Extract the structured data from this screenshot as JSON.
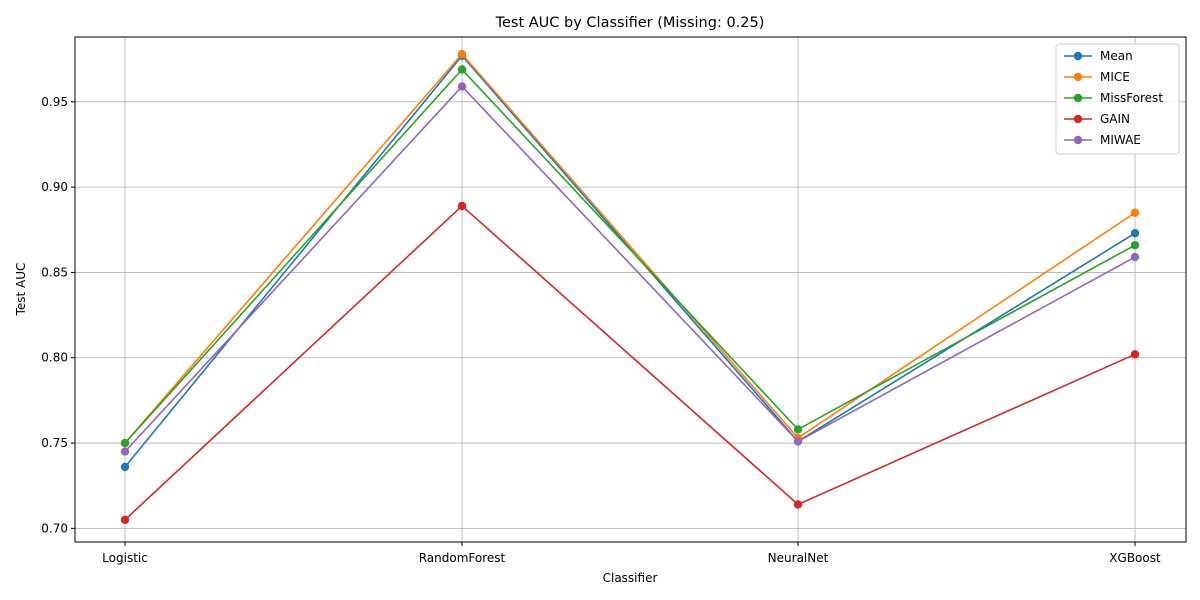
{
  "chart_data": {
    "type": "line",
    "title": "Test AUC by Classifier (Missing: 0.25)",
    "xlabel": "Classifier",
    "ylabel": "Test AUC",
    "categories": [
      "Logistic",
      "RandomForest",
      "NeuralNet",
      "XGBoost"
    ],
    "ylim": [
      0.692,
      0.988
    ],
    "yticks": [
      "0.70",
      "0.75",
      "0.80",
      "0.85",
      "0.90",
      "0.95"
    ],
    "grid": true,
    "legend_position": "top-right",
    "marker": "circle",
    "series": [
      {
        "name": "Mean",
        "color": "#1f77b4",
        "values": [
          0.736,
          0.977,
          0.751,
          0.873
        ]
      },
      {
        "name": "MICE",
        "color": "#ff7f0e",
        "values": [
          0.75,
          0.978,
          0.753,
          0.885
        ]
      },
      {
        "name": "MissForest",
        "color": "#2ca02c",
        "values": [
          0.75,
          0.969,
          0.758,
          0.866
        ]
      },
      {
        "name": "GAIN",
        "color": "#d62728",
        "values": [
          0.705,
          0.889,
          0.714,
          0.802
        ]
      },
      {
        "name": "MIWAE",
        "color": "#9467bd",
        "values": [
          0.745,
          0.959,
          0.751,
          0.859
        ]
      }
    ]
  }
}
